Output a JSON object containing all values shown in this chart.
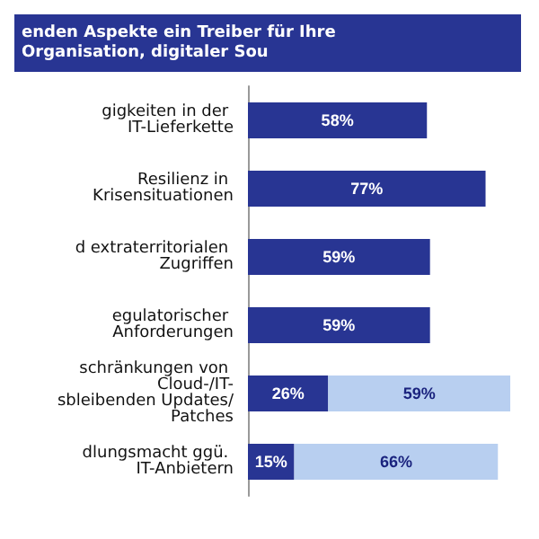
{
  "chart_data": {
    "type": "bar",
    "orientation": "horizontal",
    "stacked": true,
    "title": "enden Aspekte ein Treiber für Ihre Organisation, digitaler Sou",
    "categories": [
      "gigkeiten in der IT-Lieferkette",
      "Resilienz in Krisensituationen",
      "d extraterritorialen Zugriffen",
      "egulatorischer Anforderungen",
      "schränkungen von Cloud-/IT-\nsbleibenden Updates/Patches",
      "dlungsmacht ggü. IT-Anbietern"
    ],
    "series": [
      {
        "color": "#283593",
        "values": [
          58,
          77,
          59,
          59,
          26,
          15
        ],
        "value_labels": [
          "58%",
          "77%",
          "59%",
          "59%",
          "26%",
          "15%"
        ]
      },
      {
        "color": "#b8cff0",
        "values": [
          null,
          null,
          null,
          null,
          59,
          66
        ],
        "value_labels": [
          null,
          null,
          null,
          null,
          "59%",
          "66%"
        ]
      }
    ]
  }
}
